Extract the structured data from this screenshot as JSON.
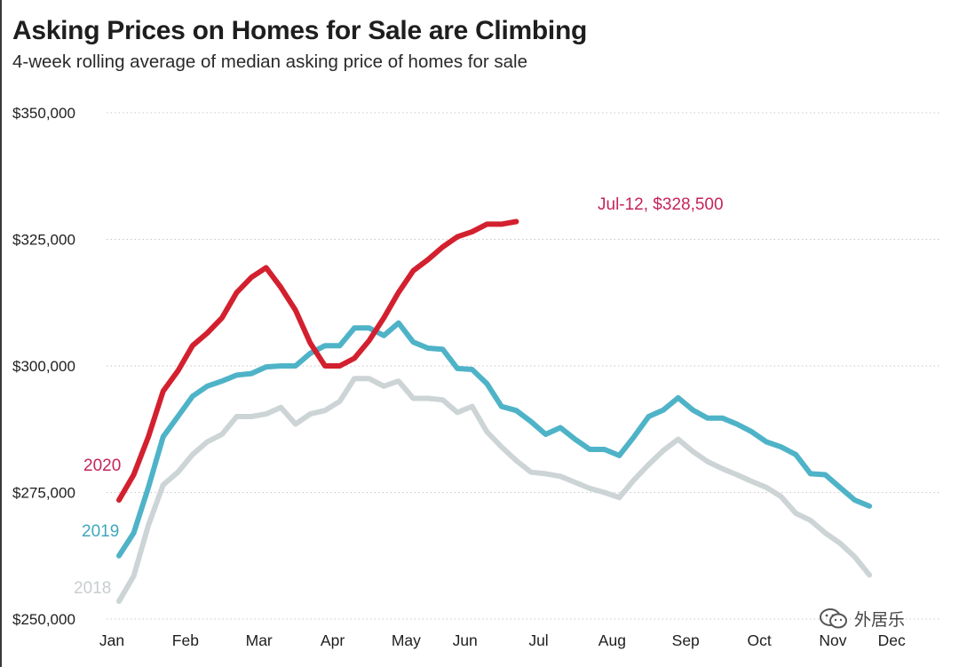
{
  "title": "Asking Prices on Homes for Sale are Climbing",
  "subtitle": "4-week rolling average of median asking price of homes for sale",
  "watermark": {
    "text": "外居乐",
    "icon": "wechat-icon"
  },
  "colors": {
    "s2020": "#d3202f",
    "s2019": "#4fb3c8",
    "s2018": "#cdd4d6",
    "label2020": "#c6245a",
    "label2019": "#3fa7bf",
    "label2018": "#c7cdd0",
    "grid": "#c8c8c8"
  },
  "chart_data": {
    "type": "line",
    "title": "Asking Prices on Homes for Sale are Climbing",
    "subtitle": "4-week rolling average of median asking price of homes for sale",
    "xlabel": "",
    "ylabel": "",
    "x_unit": "week of year (1 = first week of Jan)",
    "xlim": [
      1,
      53
    ],
    "ylim": [
      250000,
      350000
    ],
    "yticks": [
      250000,
      275000,
      300000,
      325000,
      350000
    ],
    "ytick_labels": [
      "$250,000",
      "$275,000",
      "$300,000",
      "$325,000",
      "$350,000"
    ],
    "xtick_labels": [
      "Jan",
      "Feb",
      "Mar",
      "Apr",
      "May",
      "Jun",
      "Jul",
      "Aug",
      "Sep",
      "Oct",
      "Nov",
      "Dec"
    ],
    "xtick_weeks": [
      1,
      6,
      11,
      16,
      21,
      25,
      30,
      35,
      40,
      45,
      50,
      54
    ],
    "grid": "horizontal dotted",
    "legend": "inline labels at left",
    "series": [
      {
        "name": "2020",
        "color": "#d3202f",
        "values": [
          273500,
          278500,
          286000,
          295000,
          299000,
          304000,
          306500,
          309500,
          314500,
          317500,
          319400,
          315500,
          311000,
          304500,
          300000,
          300000,
          301500,
          305000,
          309500,
          314500,
          318800,
          321000,
          323500,
          325500,
          326500,
          328000,
          328000,
          328500
        ]
      },
      {
        "name": "2019",
        "color": "#4fb3c8",
        "values": [
          262500,
          267000,
          276000,
          286000,
          290000,
          294000,
          296000,
          297000,
          298200,
          298500,
          299800,
          300000,
          300000,
          302500,
          304000,
          304000,
          307500,
          307500,
          306000,
          308500,
          304700,
          303500,
          303300,
          299500,
          299300,
          296500,
          292000,
          291200,
          289000,
          286500,
          287800,
          285500,
          283500,
          283500,
          282300,
          286000,
          290000,
          291300,
          293700,
          291300,
          289700,
          289700,
          288500,
          287000,
          285000,
          284000,
          282500,
          278700,
          278500,
          276000,
          273500,
          272300
        ]
      },
      {
        "name": "2018",
        "color": "#cdd4d6",
        "values": [
          253500,
          258500,
          268500,
          276500,
          279000,
          282500,
          285000,
          286500,
          290000,
          290000,
          290500,
          291800,
          288500,
          290500,
          291200,
          293000,
          297500,
          297500,
          296000,
          297000,
          293600,
          293600,
          293300,
          290800,
          292000,
          287000,
          284000,
          281300,
          279000,
          278700,
          278200,
          277000,
          275800,
          275000,
          274000,
          277500,
          280500,
          283300,
          285500,
          283100,
          281100,
          279700,
          278500,
          277200,
          276000,
          274200,
          270900,
          269500,
          267000,
          265000,
          262300,
          258700
        ]
      }
    ],
    "annotations": [
      {
        "text": "Jul-12, $328,500",
        "series": "2020"
      }
    ]
  }
}
